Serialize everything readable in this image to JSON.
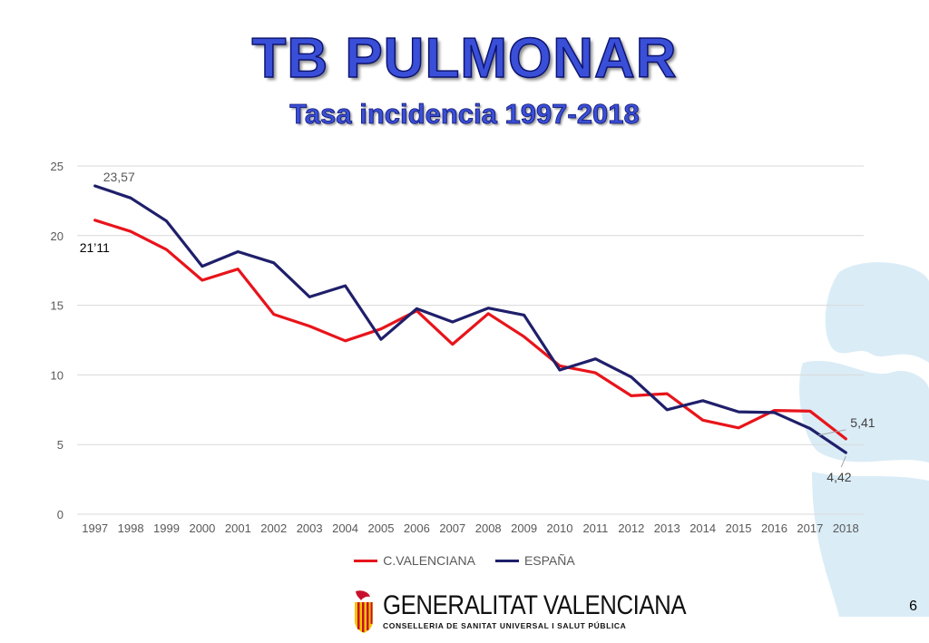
{
  "title": "TB PULMONAR",
  "subtitle": "Tasa incidencia 1997-2018",
  "chart_data": {
    "type": "line",
    "categories": [
      "1997",
      "1998",
      "1999",
      "2000",
      "2001",
      "2002",
      "2003",
      "2004",
      "2005",
      "2006",
      "2007",
      "2008",
      "2009",
      "2010",
      "2011",
      "2012",
      "2013",
      "2014",
      "2015",
      "2016",
      "2017",
      "2018"
    ],
    "series": [
      {
        "name": "C.VALENCIANA",
        "color": "#e8141b",
        "values": [
          21.11,
          20.3,
          19.0,
          16.8,
          17.6,
          14.35,
          13.5,
          12.45,
          13.3,
          14.6,
          12.2,
          14.4,
          12.75,
          10.65,
          10.15,
          8.5,
          8.65,
          6.75,
          6.2,
          7.45,
          7.4,
          5.41
        ]
      },
      {
        "name": "ESPAÑA",
        "color": "#1f1f6b",
        "values": [
          23.57,
          22.7,
          21.05,
          17.8,
          18.85,
          18.05,
          15.6,
          16.4,
          12.55,
          14.75,
          13.8,
          14.8,
          14.3,
          10.35,
          11.15,
          9.85,
          7.5,
          8.15,
          7.35,
          7.3,
          6.15,
          4.42
        ]
      }
    ],
    "ylim": [
      0,
      25
    ],
    "yticks": [
      "0",
      "5",
      "10",
      "15",
      "20",
      "25"
    ],
    "grid": true,
    "legend": "bottom",
    "annotations": [
      {
        "text": "23,57",
        "series": 1,
        "index": 0
      },
      {
        "text": "21’11",
        "series": 0,
        "index": 0
      },
      {
        "text": "5,41",
        "series": 0,
        "index": 21
      },
      {
        "text": "4,42",
        "series": 1,
        "index": 21
      }
    ]
  },
  "footer": {
    "logo_name": "GENERALITAT VALENCIANA",
    "logo_sub": "CONSELLERIA DE SANITAT UNIVERSAL I SALUT PÚBLICA",
    "page_number": "6"
  }
}
